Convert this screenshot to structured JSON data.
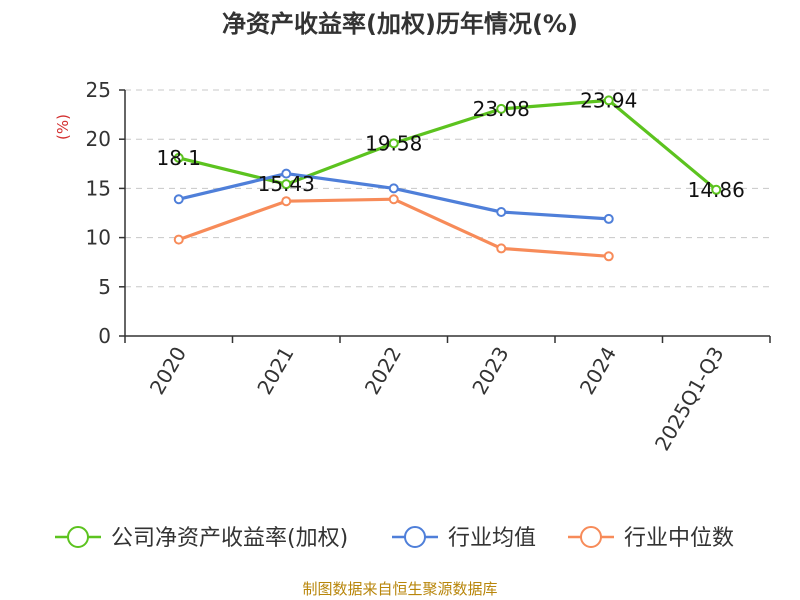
{
  "chart_data": {
    "type": "line",
    "title": "净资产收益率(加权)历年情况(%)",
    "ylabel": "(%)",
    "xlabel": "",
    "ylim": [
      0,
      25
    ],
    "yticks": [
      0,
      5,
      10,
      15,
      20,
      25
    ],
    "grid": true,
    "legend_position": "bottom",
    "categories": [
      "2020",
      "2021",
      "2022",
      "2023",
      "2024",
      "2025Q1-Q3"
    ],
    "series": [
      {
        "name": "公司净资产收益率(加权)",
        "color": "#5cc31f",
        "values": [
          18.1,
          15.43,
          19.58,
          23.08,
          23.94,
          14.86
        ],
        "labels": [
          "18.1",
          "15.43",
          "19.58",
          "23.08",
          "23.94",
          "14.86"
        ]
      },
      {
        "name": "行业均值",
        "color": "#4f7fd9",
        "values": [
          13.9,
          16.5,
          15.0,
          12.6,
          11.9,
          null
        ]
      },
      {
        "name": "行业中位数",
        "color": "#f78b59",
        "values": [
          9.8,
          13.7,
          13.9,
          8.9,
          8.1,
          null
        ]
      }
    ],
    "source": "制图数据来自恒生聚源数据库"
  }
}
